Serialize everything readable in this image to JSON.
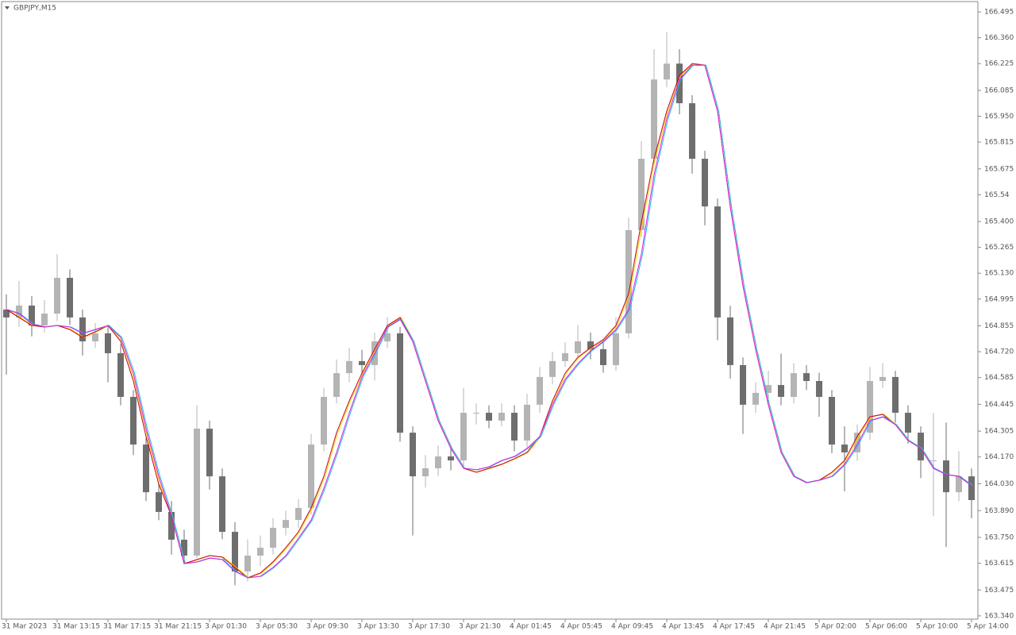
{
  "chart_data": {
    "type": "candlestick",
    "title": "GBPJPY,M15",
    "categories": [
      "31 Mar 2023",
      null,
      null,
      null,
      "31 Mar 13:15",
      null,
      null,
      null,
      "31 Mar 17:15",
      null,
      null,
      null,
      "31 Mar 21:15",
      null,
      null,
      null,
      "3 Apr 01:30",
      null,
      null,
      null,
      "3 Apr 05:30",
      null,
      null,
      null,
      "3 Apr 09:30",
      null,
      null,
      null,
      "3 Apr 13:30",
      null,
      null,
      null,
      "3 Apr 17:30",
      null,
      null,
      null,
      "3 Apr 21:30",
      null,
      null,
      null,
      "4 Apr 01:45",
      null,
      null,
      null,
      "4 Apr 05:45",
      null,
      null,
      null,
      "4 Apr 09:45",
      null,
      null,
      null,
      "4 Apr 13:45",
      null,
      null,
      null,
      "4 Apr 17:45",
      null,
      null,
      null,
      "4 Apr 21:45",
      null,
      null,
      null,
      "5 Apr 02:00",
      null,
      null,
      null,
      "5 Apr 06:00",
      null,
      null,
      null,
      "5 Apr 10:00",
      null,
      null,
      null,
      "5 Apr 14:00"
    ],
    "open": [
      164.94,
      164.899,
      164.961,
      164.857,
      164.919,
      165.106,
      164.899,
      164.774,
      164.816,
      164.712,
      164.484,
      164.235,
      163.986,
      163.883,
      163.738,
      163.655,
      164.318,
      164.069,
      163.779,
      163.572,
      163.655,
      163.696,
      163.8,
      163.841,
      163.904,
      164.235,
      164.484,
      164.608,
      164.671,
      164.65,
      164.774,
      164.816,
      164.297,
      164.069,
      164.111,
      164.173,
      164.152,
      164.401,
      164.401,
      164.36,
      164.401,
      164.256,
      164.443,
      164.588,
      164.671,
      164.712,
      164.774,
      164.733,
      164.65,
      164.816,
      165.355,
      165.728,
      166.142,
      166.225,
      166.018,
      165.728,
      165.479,
      164.899,
      164.65,
      164.443,
      164.505,
      164.546,
      164.484,
      164.608,
      164.567,
      164.484,
      164.235,
      164.194,
      164.297,
      164.567,
      164.588,
      164.401,
      164.297,
      164.152,
      164.152,
      163.986,
      164.069
    ],
    "high": [
      165.02,
      165.09,
      165.01,
      164.99,
      165.23,
      165.15,
      164.94,
      164.87,
      164.86,
      164.76,
      164.52,
      164.27,
      164.03,
      163.94,
      163.79,
      164.44,
      164.36,
      164.11,
      163.83,
      163.74,
      163.76,
      163.85,
      163.89,
      163.95,
      164.29,
      164.53,
      164.68,
      164.74,
      164.73,
      164.82,
      164.9,
      164.85,
      164.33,
      164.18,
      164.23,
      164.22,
      164.53,
      164.45,
      164.44,
      164.45,
      164.44,
      164.5,
      164.64,
      164.72,
      164.77,
      164.86,
      164.82,
      164.77,
      164.9,
      165.42,
      165.82,
      166.3,
      166.39,
      166.3,
      166.06,
      165.77,
      165.52,
      164.96,
      164.69,
      164.56,
      164.62,
      164.71,
      164.66,
      164.65,
      164.61,
      164.52,
      164.33,
      164.34,
      164.64,
      164.66,
      164.62,
      164.44,
      164.33,
      164.4,
      164.35,
      164.2,
      164.11
    ],
    "low": [
      164.6,
      164.85,
      164.8,
      164.82,
      164.88,
      164.86,
      164.7,
      164.74,
      164.56,
      164.44,
      164.18,
      163.94,
      163.84,
      163.66,
      163.61,
      163.64,
      164.0,
      163.74,
      163.5,
      163.52,
      163.6,
      163.66,
      163.76,
      163.8,
      163.87,
      164.2,
      164.45,
      164.56,
      164.6,
      164.57,
      164.74,
      164.25,
      163.76,
      164.01,
      164.07,
      164.1,
      164.12,
      164.34,
      164.32,
      164.33,
      164.2,
      164.22,
      164.4,
      164.55,
      164.64,
      164.68,
      164.68,
      164.61,
      164.62,
      164.79,
      165.32,
      165.7,
      166.1,
      165.96,
      165.65,
      165.38,
      164.78,
      164.58,
      164.29,
      164.4,
      164.46,
      164.44,
      164.45,
      164.52,
      164.38,
      164.19,
      163.99,
      164.15,
      164.26,
      164.53,
      164.35,
      164.24,
      164.06,
      163.86,
      163.7,
      163.94,
      163.85
    ],
    "close": [
      164.899,
      164.961,
      164.857,
      164.919,
      165.106,
      164.899,
      164.774,
      164.816,
      164.712,
      164.484,
      164.235,
      163.986,
      163.883,
      163.738,
      163.655,
      164.318,
      164.069,
      163.779,
      163.572,
      163.655,
      163.696,
      163.8,
      163.841,
      163.904,
      164.235,
      164.484,
      164.608,
      164.671,
      164.65,
      164.774,
      164.816,
      164.297,
      164.069,
      164.111,
      164.173,
      164.152,
      164.401,
      164.401,
      164.36,
      164.401,
      164.256,
      164.443,
      164.588,
      164.671,
      164.712,
      164.774,
      164.733,
      164.65,
      164.816,
      165.355,
      165.728,
      166.142,
      166.225,
      166.018,
      165.728,
      165.479,
      164.899,
      164.65,
      164.443,
      164.505,
      164.546,
      164.484,
      164.608,
      164.567,
      164.484,
      164.235,
      164.194,
      164.297,
      164.567,
      164.588,
      164.401,
      164.297,
      164.152,
      164.152,
      163.986,
      164.069,
      163.945
    ],
    "up_color": "#b4b4b4",
    "down_color": "#6e6e6e",
    "series": [
      {
        "color": "#c0001e",
        "shadow_color": "#ffd700",
        "values": [
          164.94,
          164.899,
          164.857,
          164.849,
          164.857,
          164.836,
          164.795,
          164.824,
          164.857,
          164.774,
          164.567,
          164.277,
          164.028,
          163.862,
          163.613,
          163.634,
          163.655,
          163.647,
          163.593,
          163.539,
          163.564,
          163.622,
          163.696,
          163.779,
          163.904,
          164.069,
          164.297,
          164.463,
          164.608,
          164.733,
          164.857,
          164.899,
          164.774,
          164.567,
          164.36,
          164.215,
          164.111,
          164.09,
          164.111,
          164.132,
          164.161,
          164.194,
          164.277,
          164.463,
          164.608,
          164.691,
          164.741,
          164.783,
          164.857,
          165.023,
          165.396,
          165.728,
          165.977,
          166.163,
          166.225,
          166.217,
          165.977,
          165.479,
          165.064,
          164.733,
          164.443,
          164.194,
          164.069,
          164.036,
          164.049,
          164.09,
          164.152,
          164.277,
          164.38,
          164.393,
          164.339,
          164.256,
          164.215,
          164.111,
          164.078,
          164.069,
          164.02
        ]
      },
      {
        "color": "#e020e0",
        "shadow_color": "#20b8f0",
        "values": [
          164.94,
          164.919,
          164.866,
          164.849,
          164.857,
          164.849,
          164.816,
          164.836,
          164.857,
          164.795,
          164.608,
          164.318,
          164.069,
          163.862,
          163.613,
          163.622,
          163.642,
          163.634,
          163.572,
          163.539,
          163.547,
          163.593,
          163.655,
          163.746,
          163.841,
          164.007,
          164.194,
          164.401,
          164.588,
          164.712,
          164.849,
          164.89,
          164.774,
          164.567,
          164.36,
          164.215,
          164.111,
          164.103,
          164.119,
          164.152,
          164.173,
          164.215,
          164.277,
          164.443,
          164.575,
          164.658,
          164.724,
          164.774,
          164.836,
          164.94,
          165.23,
          165.645,
          165.935,
          166.142,
          166.217,
          166.217,
          165.977,
          165.479,
          165.064,
          164.733,
          164.443,
          164.194,
          164.069,
          164.036,
          164.049,
          164.069,
          164.132,
          164.235,
          164.36,
          164.38,
          164.339,
          164.256,
          164.215,
          164.111,
          164.078,
          164.069,
          164.02
        ]
      }
    ],
    "ylim": [
      163.323,
      166.549
    ],
    "yticks": [
      {
        "value": 163.34,
        "label": "163.340"
      },
      163.475,
      163.615,
      {
        "value": 163.75,
        "label": "163.750"
      },
      {
        "value": 163.89,
        "label": "163.890"
      },
      {
        "value": 164.03,
        "label": "164.030"
      },
      {
        "value": 164.17,
        "label": "164.170"
      },
      164.305,
      164.445,
      164.585,
      {
        "value": 164.72,
        "label": "164.720"
      },
      164.855,
      164.995,
      {
        "value": 165.13,
        "label": "165.130"
      },
      165.265,
      {
        "value": 165.4,
        "label": "165.400"
      },
      165.54,
      165.675,
      165.815,
      {
        "value": 165.95,
        "label": "165.950"
      },
      166.085,
      166.225,
      {
        "value": 166.36,
        "label": "166.360"
      },
      166.495
    ]
  }
}
